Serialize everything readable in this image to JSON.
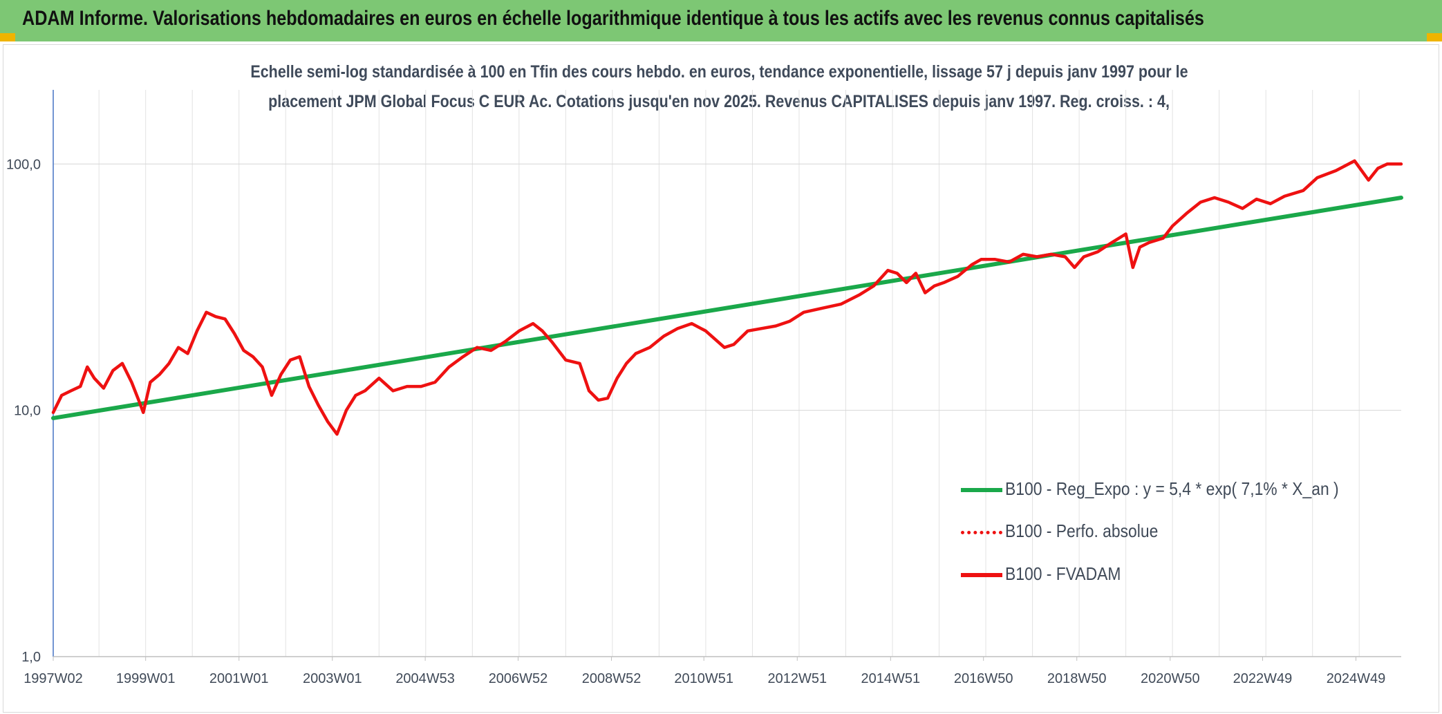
{
  "header": {
    "title": "ADAM Informe. Valorisations hebdomadaires en euros en échelle logarithmique identique à tous les actifs avec les revenus connus capitalisés"
  },
  "colors": {
    "header_bg": "#7dc774",
    "corner_accent": "#f0b400",
    "trend_line": "#1aa84a",
    "price_line": "#ee1111",
    "grid": "#dcdcdc",
    "axis": "#4472c4",
    "text": "#404a58"
  },
  "chart_data": {
    "type": "line",
    "title_line1": "Echelle semi-log standardisée à 100 en Tfin des cours hebdo. en euros, tendance exponentielle, lissage 57 j depuis janv 1997 pour le",
    "title_line2": "placement JPM Global Focus C EUR Ac. Cotations jusqu'en nov 2025. Revenus CAPITALISES depuis janv 1997. Reg. croiss. : 4,",
    "y_scale": "log",
    "ylim": [
      1,
      200
    ],
    "y_ticks": [
      {
        "value": 1,
        "label": "1,0"
      },
      {
        "value": 10,
        "label": "10,0"
      },
      {
        "value": 100,
        "label": "100,0"
      }
    ],
    "xlim": [
      1997.02,
      2025.9
    ],
    "x_ticks": [
      {
        "value": 1997.02,
        "label": "1997W02"
      },
      {
        "value": 1999.0,
        "label": "1999W01"
      },
      {
        "value": 2001.0,
        "label": "2001W01"
      },
      {
        "value": 2003.0,
        "label": "2003W01"
      },
      {
        "value": 2004.99,
        "label": "2004W53"
      },
      {
        "value": 2006.98,
        "label": "2006W52"
      },
      {
        "value": 2008.98,
        "label": "2008W52"
      },
      {
        "value": 2010.96,
        "label": "2010W51"
      },
      {
        "value": 2012.96,
        "label": "2012W51"
      },
      {
        "value": 2014.96,
        "label": "2014W51"
      },
      {
        "value": 2016.95,
        "label": "2016W50"
      },
      {
        "value": 2018.95,
        "label": "2018W50"
      },
      {
        "value": 2020.95,
        "label": "2020W50"
      },
      {
        "value": 2022.93,
        "label": "2022W49"
      },
      {
        "value": 2024.93,
        "label": "2024W49"
      }
    ],
    "grid": true,
    "legend_position": "bottom-right",
    "series": [
      {
        "name": "B100 - Reg_Expo : y = 5,4 * exp( 7,1% *  X_an )",
        "color": "#1aa84a",
        "style": "solid",
        "x": [
          1997.02,
          2025.9
        ],
        "y": [
          9.3,
          73.0
        ]
      },
      {
        "name": "B100 - Perfo. absolue",
        "color": "#ee1111",
        "style": "dotted",
        "x": [],
        "y": []
      },
      {
        "name": "B100 - FVADAM",
        "color": "#ee1111",
        "style": "solid",
        "x": [
          1997.02,
          1997.2,
          1997.4,
          1997.6,
          1997.75,
          1997.9,
          1998.1,
          1998.3,
          1998.5,
          1998.7,
          1998.85,
          1998.95,
          1999.1,
          1999.3,
          1999.5,
          1999.7,
          1999.9,
          2000.1,
          2000.3,
          2000.5,
          2000.7,
          2000.9,
          2001.1,
          2001.3,
          2001.5,
          2001.7,
          2001.9,
          2002.1,
          2002.3,
          2002.5,
          2002.7,
          2002.9,
          2003.1,
          2003.3,
          2003.5,
          2003.7,
          2004.0,
          2004.3,
          2004.6,
          2004.9,
          2005.2,
          2005.5,
          2005.8,
          2006.1,
          2006.4,
          2006.7,
          2007.0,
          2007.3,
          2007.5,
          2007.7,
          2008.0,
          2008.3,
          2008.5,
          2008.7,
          2008.9,
          2009.1,
          2009.3,
          2009.5,
          2009.8,
          2010.1,
          2010.4,
          2010.7,
          2011.0,
          2011.4,
          2011.6,
          2011.9,
          2012.2,
          2012.5,
          2012.8,
          2013.1,
          2013.5,
          2013.9,
          2014.3,
          2014.6,
          2014.9,
          2015.1,
          2015.3,
          2015.5,
          2015.7,
          2015.9,
          2016.1,
          2016.4,
          2016.7,
          2016.9,
          2017.2,
          2017.5,
          2017.8,
          2018.1,
          2018.4,
          2018.7,
          2018.9,
          2019.1,
          2019.4,
          2019.7,
          2020.0,
          2020.15,
          2020.3,
          2020.5,
          2020.8,
          2021.0,
          2021.3,
          2021.6,
          2021.9,
          2022.2,
          2022.5,
          2022.8,
          2023.1,
          2023.4,
          2023.8,
          2024.1,
          2024.5,
          2024.9,
          2025.2,
          2025.4,
          2025.6,
          2025.9
        ],
        "y": [
          9.8,
          11.5,
          12.0,
          12.5,
          15.0,
          13.5,
          12.3,
          14.5,
          15.5,
          13.0,
          11.0,
          9.8,
          13.0,
          14.0,
          15.5,
          18.0,
          17.0,
          21.0,
          25.0,
          24.0,
          23.5,
          20.5,
          17.5,
          16.5,
          15.0,
          11.5,
          14.0,
          16.0,
          16.5,
          12.5,
          10.5,
          9.0,
          8.0,
          10.0,
          11.5,
          12.0,
          13.5,
          12.0,
          12.5,
          12.5,
          13.0,
          15.0,
          16.5,
          18.0,
          17.5,
          19.0,
          21.0,
          22.5,
          21.0,
          19.0,
          16.0,
          15.5,
          12.0,
          11.0,
          11.2,
          13.5,
          15.5,
          17.0,
          18.0,
          20.0,
          21.5,
          22.5,
          21.0,
          18.0,
          18.5,
          21.0,
          21.5,
          22.0,
          23.0,
          25.0,
          26.0,
          27.0,
          29.5,
          32.0,
          37.0,
          36.0,
          33.0,
          36.0,
          30.0,
          32.0,
          33.0,
          35.0,
          39.0,
          41.0,
          41.0,
          40.0,
          43.0,
          42.0,
          43.0,
          42.0,
          38.0,
          42.0,
          44.0,
          48.0,
          52.0,
          38.0,
          46.0,
          48.0,
          50.0,
          56.0,
          63.0,
          70.0,
          73.0,
          70.0,
          66.0,
          72.0,
          69.0,
          74.0,
          78.0,
          88.0,
          94.0,
          103.0,
          86.0,
          96.0,
          100.0,
          100.0
        ]
      }
    ]
  }
}
